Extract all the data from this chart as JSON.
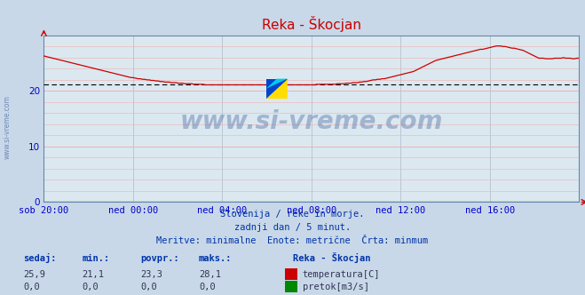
{
  "title": "Reka - Škocjan",
  "bg_color": "#c8d8e8",
  "plot_bg_color": "#dce8f0",
  "temp_line_color": "#cc0000",
  "flow_line_color": "#008800",
  "avg_line_color": "#000000",
  "avg_line_value": 21.1,
  "ylim": [
    0,
    30
  ],
  "xlim": [
    0,
    288
  ],
  "yticks": [
    0,
    10,
    20
  ],
  "xtick_positions": [
    0,
    48,
    96,
    144,
    192,
    240
  ],
  "xtick_labels": [
    "sob 20:00",
    "ned 00:00",
    "ned 04:00",
    "ned 08:00",
    "ned 12:00",
    "ned 16:00"
  ],
  "watermark": "www.si-vreme.com",
  "subtitle1": "Slovenija / reke in morje.",
  "subtitle2": "zadnji dan / 5 minut.",
  "subtitle3": "Meritve: minimalne  Enote: metrične  Črta: minmum",
  "table_headers": [
    "sedaj:",
    "min.:",
    "povpr.:",
    "maks.:"
  ],
  "table_row1_values": [
    "25,9",
    "21,1",
    "23,3",
    "28,1"
  ],
  "table_row2_values": [
    "0,0",
    "0,0",
    "0,0",
    "0,0"
  ],
  "legend_title": "Reka - Škocjan",
  "legend_items": [
    "temperatura[C]",
    "pretok[m3/s]"
  ],
  "legend_colors": [
    "#cc0000",
    "#008800"
  ],
  "tick_color": "#0000cc",
  "label_color": "#0000cc",
  "title_color": "#cc0000",
  "temp_data": [
    26.3,
    26.2,
    26.1,
    26.0,
    25.9,
    25.8,
    25.7,
    25.6,
    25.5,
    25.4,
    25.3,
    25.2,
    25.1,
    25.0,
    24.9,
    24.8,
    24.7,
    24.6,
    24.5,
    24.4,
    24.3,
    24.2,
    24.1,
    24.0,
    23.9,
    23.8,
    23.7,
    23.6,
    23.5,
    23.4,
    23.3,
    23.2,
    23.1,
    23.0,
    22.9,
    22.8,
    22.7,
    22.6,
    22.5,
    22.4,
    22.4,
    22.3,
    22.2,
    22.2,
    22.1,
    22.1,
    22.0,
    22.0,
    21.9,
    21.9,
    21.8,
    21.8,
    21.7,
    21.7,
    21.6,
    21.6,
    21.6,
    21.5,
    21.5,
    21.5,
    21.4,
    21.4,
    21.4,
    21.3,
    21.3,
    21.3,
    21.3,
    21.2,
    21.2,
    21.2,
    21.2,
    21.2,
    21.1,
    21.1,
    21.1,
    21.1,
    21.1,
    21.1,
    21.1,
    21.1,
    21.1,
    21.1,
    21.1,
    21.1,
    21.1,
    21.1,
    21.1,
    21.1,
    21.1,
    21.1,
    21.1,
    21.1,
    21.1,
    21.1,
    21.1,
    21.1,
    21.1,
    21.1,
    21.1,
    21.1,
    21.1,
    21.1,
    21.1,
    21.1,
    21.1,
    21.1,
    21.1,
    21.1,
    21.1,
    21.1,
    21.1,
    21.1,
    21.1,
    21.1,
    21.1,
    21.1,
    21.1,
    21.1,
    21.1,
    21.1,
    21.1,
    21.1,
    21.2,
    21.2,
    21.2,
    21.2,
    21.2,
    21.2,
    21.2,
    21.2,
    21.2,
    21.3,
    21.3,
    21.3,
    21.3,
    21.4,
    21.4,
    21.4,
    21.5,
    21.5,
    21.5,
    21.6,
    21.6,
    21.7,
    21.7,
    21.8,
    21.9,
    22.0,
    22.0,
    22.1,
    22.1,
    22.2,
    22.2,
    22.3,
    22.4,
    22.5,
    22.6,
    22.7,
    22.8,
    22.9,
    23.0,
    23.1,
    23.2,
    23.3,
    23.4,
    23.5,
    23.7,
    23.9,
    24.1,
    24.3,
    24.5,
    24.7,
    24.9,
    25.1,
    25.3,
    25.5,
    25.6,
    25.7,
    25.8,
    25.9,
    26.0,
    26.1,
    26.2,
    26.3,
    26.4,
    26.5,
    26.6,
    26.7,
    26.8,
    26.9,
    27.0,
    27.1,
    27.2,
    27.3,
    27.4,
    27.5,
    27.5,
    27.6,
    27.7,
    27.8,
    27.9,
    28.0,
    28.1,
    28.1,
    28.1,
    28.0,
    28.0,
    27.9,
    27.8,
    27.7,
    27.7,
    27.6,
    27.5,
    27.4,
    27.3,
    27.1,
    26.9,
    26.7,
    26.5,
    26.3,
    26.1,
    25.9,
    25.9,
    25.9,
    25.8,
    25.8,
    25.8,
    25.8,
    25.9,
    25.9,
    25.9,
    25.9,
    26.0,
    25.9,
    25.9,
    25.9,
    25.8,
    25.8,
    25.9,
    25.9
  ],
  "flow_data_value": 0.0
}
